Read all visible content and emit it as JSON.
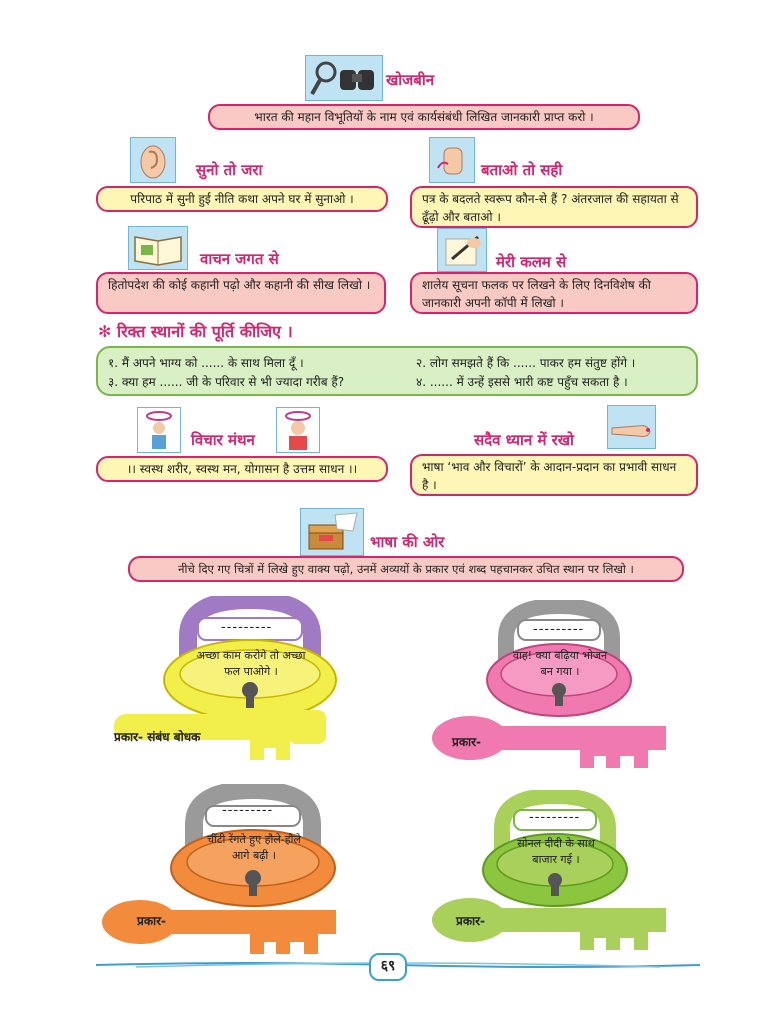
{
  "khojbeen": {
    "title": "खोजबीन",
    "text": "भारत की महान विभूतियों के नाम एवं कार्यसंबंधी लिखित जानकारी प्राप्त करो ।"
  },
  "suno": {
    "title": "सुनो तो जरा",
    "text": "परिपाठ में सुनी हुई नीति कथा अपने घर में सुनाओ ।"
  },
  "batao": {
    "title": "बताओ तो सही",
    "text": "पत्र के बदलते स्वरूप कौन-से हैं ? अंतरजाल की सहायता से ढूँढ़ो और बताओ ।"
  },
  "vachan": {
    "title": "वाचन जगत से",
    "text": "हितोपदेश की कोई कहानी पढ़ो और कहानी की सीख लिखो ।"
  },
  "kalam": {
    "title": "मेरी कलम से",
    "text": "शालेय सूचना फलक पर लिखने के लिए दिनविशेष की जानकारी अपनी कॉपी में लिखो ।"
  },
  "fill": {
    "title": "✻ रिक्त स्थानों की पूर्ति कीजिए ।",
    "q1": "१. मैं अपने भाग्य को ...... के साथ मिला दूँ ।",
    "q2": "२. लोग समझते हैं कि ...... पाकर हम संतुष्ट होंगे ।",
    "q3": "३. क्या हम ...... जी के परिवार से भी ज्यादा गरीब हैं?",
    "q4": "४. ...... में उन्हें इससे भारी कष्ट पहुँच सकता है ।"
  },
  "vichar": {
    "title": "विचार मंथन",
    "text": "।। स्वस्थ शरीर, स्वस्थ मन, योगासन है उत्तम साधन ।।"
  },
  "dhyan": {
    "title": "सदैव ध्यान में रखो",
    "text": "भाषा ‘भाव और विचारों’ के आदान-प्रदान का प्रभावी साधन है ।"
  },
  "bhasha": {
    "title": "भाषा की ओर",
    "text": "नीचे दिए गए चित्रों में लिखे हुए वाक्य पढ़ो, उनमें अव्ययों के प्रकार एवं शब्द पहचानकर उचित स्थान पर लिखो ।"
  },
  "locks": [
    {
      "dash": "---------",
      "sentence": "अच्छा काम करोगे तो अच्छा फल पाओगे ।",
      "key": "प्रकार- संबंध बोधक",
      "shackle": "#a07bc4",
      "body": "#f2ee4a",
      "keycolor": "#f2ee4a"
    },
    {
      "dash": "---------",
      "sentence": "वाह! क्या बढ़िया भोजन बन गया ।",
      "key": "प्रकार-",
      "shackle": "#9a9a9a",
      "body": "#f07ab0",
      "keycolor": "#f07ab0"
    },
    {
      "dash": "---------",
      "sentence": "चींटी रेंगते हुए हौले-हौले आगे बढ़ी ।",
      "key": "प्रकार-",
      "shackle": "#9a9a9a",
      "body": "#f28c3c",
      "keycolor": "#f28c3c"
    },
    {
      "dash": "---------",
      "sentence": "सोनल दीदी के साथ बाजार गई ।",
      "key": "प्रकार-",
      "shackle": "#a8d05a",
      "body": "#8cc63f",
      "keycolor": "#a8d05a"
    }
  ],
  "page_number": "६९"
}
